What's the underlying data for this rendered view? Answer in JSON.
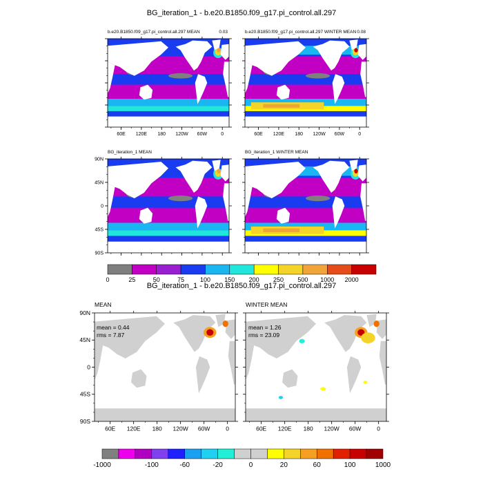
{
  "colors": {
    "ocean_fill": "#1a3cf0",
    "land": "#ffffff",
    "diff_land": "#d0d0d0",
    "diff_ocean": "#ffffff",
    "grid": "#000000"
  },
  "chart_data": [
    {
      "type": "heatmap",
      "title": "BG_iteration_1 - b.e20.B1850.f09_g17.pi_control.all.297",
      "panels": [
        {
          "id": "case_mean",
          "left_label": "b.e20.B1850.f09_g17.pi_control.all.297 MEAN",
          "right_label": "0.03"
        },
        {
          "id": "case_winter",
          "left_label": "b.e20.B1850.f09_g17.pi_control.all.297 WINTER MEAN",
          "right_label": "0.08"
        },
        {
          "id": "ctrl_mean",
          "left_label": "BG_iteration_1 MEAN",
          "right_label": ""
        },
        {
          "id": "ctrl_winter",
          "left_label": "BG_iteration_1 WINTER MEAN",
          "right_label": ""
        }
      ],
      "lon_ticks": [
        "60E",
        "120E",
        "180",
        "120W",
        "60W",
        "0"
      ],
      "lat_ticks": [
        "90N",
        "45N",
        "0",
        "45S",
        "90S"
      ],
      "colorbar": {
        "levels": [
          "0",
          "25",
          "50",
          "75",
          "100",
          "150",
          "200",
          "250",
          "500",
          "1000",
          "2000"
        ],
        "colors": [
          "#7f7f7f",
          "#c100c4",
          "#9a1fd0",
          "#1a3cf0",
          "#19b6f2",
          "#20e6dc",
          "#ffff00",
          "#f5d42a",
          "#f0a43a",
          "#e64b1a",
          "#c80000"
        ]
      }
    },
    {
      "type": "heatmap",
      "title": "BG_iteration_1 - b.e20.B1850.f09_g17.pi_control.all.297",
      "panels": [
        {
          "id": "diff_mean",
          "left_label": "MEAN",
          "stats": [
            "mean = 0.44",
            "rms = 7.87"
          ]
        },
        {
          "id": "diff_winter",
          "left_label": "WINTER MEAN",
          "stats": [
            "mean = 1.26",
            "rms = 23.09"
          ]
        }
      ],
      "lon_ticks": [
        "60E",
        "120E",
        "180",
        "120W",
        "60W",
        "0"
      ],
      "lat_ticks": [
        "90N",
        "45N",
        "0",
        "45S",
        "90S"
      ],
      "colorbar": {
        "labels": [
          "-1000",
          "-100",
          "-60",
          "-20",
          "0",
          "20",
          "60",
          "100",
          "1000"
        ],
        "colors": [
          "#808080",
          "#ee00ee",
          "#b000c0",
          "#8040f0",
          "#2020ff",
          "#1aa0f0",
          "#20d0f0",
          "#20f0d8",
          "#d0d0d0",
          "#d0d0d0",
          "#ffff00",
          "#f5d42a",
          "#f5a020",
          "#f07000",
          "#e02000",
          "#c80000",
          "#a00000"
        ]
      }
    }
  ]
}
